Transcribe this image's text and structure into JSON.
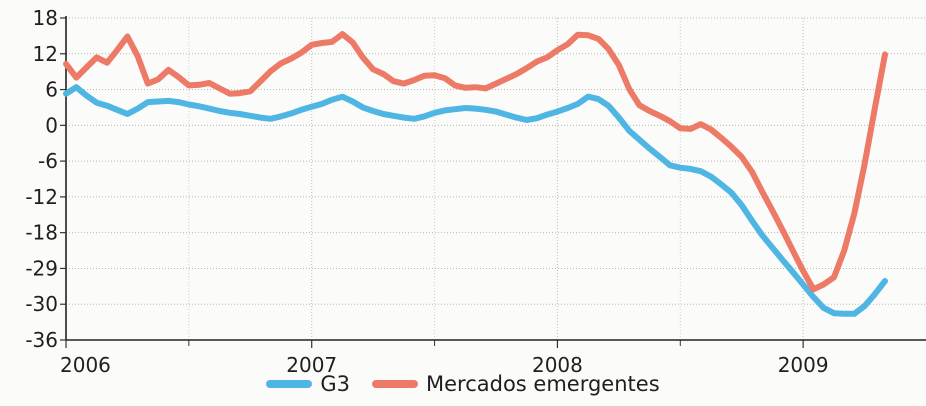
{
  "chart_data": {
    "type": "line",
    "title": "",
    "xlabel": "",
    "ylabel": "",
    "x_ticks": [
      "2006",
      "2007",
      "2008",
      "2009"
    ],
    "y_ticks": [
      "18",
      "12",
      "6",
      "0",
      "-6",
      "-12",
      "-18",
      "-29",
      "-30",
      "-36"
    ],
    "ylim": [
      -36,
      18
    ],
    "xlim": [
      2006.0,
      2009.5
    ],
    "grid": true,
    "legend_placement": "bottom-center",
    "x": [
      2006.0,
      2006.042,
      2006.083,
      2006.125,
      2006.167,
      2006.208,
      2006.25,
      2006.292,
      2006.333,
      2006.375,
      2006.417,
      2006.458,
      2006.5,
      2006.542,
      2006.583,
      2006.625,
      2006.667,
      2006.708,
      2006.75,
      2006.792,
      2006.833,
      2006.875,
      2006.917,
      2006.958,
      2007.0,
      2007.042,
      2007.083,
      2007.125,
      2007.167,
      2007.208,
      2007.25,
      2007.292,
      2007.333,
      2007.375,
      2007.417,
      2007.458,
      2007.5,
      2007.542,
      2007.583,
      2007.625,
      2007.667,
      2007.708,
      2007.75,
      2007.792,
      2007.833,
      2007.875,
      2007.917,
      2007.958,
      2008.0,
      2008.042,
      2008.083,
      2008.125,
      2008.167,
      2008.208,
      2008.25,
      2008.292,
      2008.333,
      2008.375,
      2008.417,
      2008.458,
      2008.5,
      2008.542,
      2008.583,
      2008.625,
      2008.667,
      2008.708,
      2008.75,
      2008.792,
      2008.833,
      2008.875,
      2008.917,
      2008.958,
      2009.0,
      2009.042,
      2009.083,
      2009.125,
      2009.167,
      2009.208,
      2009.25,
      2009.292,
      2009.333
    ],
    "series": [
      {
        "name": "G3",
        "color": "#4fb6e3",
        "values": [
          5.3,
          6.4,
          5.0,
          3.8,
          3.3,
          2.6,
          1.9,
          2.8,
          3.9,
          4.0,
          4.1,
          3.9,
          3.5,
          3.2,
          2.8,
          2.4,
          2.1,
          1.9,
          1.6,
          1.3,
          1.1,
          1.5,
          2.0,
          2.6,
          3.1,
          3.6,
          4.3,
          4.8,
          4.0,
          3.0,
          2.4,
          1.9,
          1.6,
          1.3,
          1.1,
          1.5,
          2.1,
          2.5,
          2.7,
          2.9,
          2.8,
          2.6,
          2.3,
          1.8,
          1.3,
          0.9,
          1.2,
          1.8,
          2.3,
          2.9,
          3.6,
          4.8,
          4.4,
          3.3,
          1.3,
          -0.9,
          -2.4,
          -3.9,
          -5.3,
          -6.7,
          -7.1,
          -7.3,
          -7.7,
          -8.6,
          -9.9,
          -11.3,
          -13.4,
          -16.0,
          -18.4,
          -20.5,
          -22.6,
          -24.6,
          -26.7,
          -28.8,
          -30.6,
          -31.5,
          -31.6,
          -31.6,
          -30.3,
          -28.3,
          -26.1
        ]
      },
      {
        "name": "Mercados emergentes",
        "color": "#ec7a67",
        "values": [
          10.3,
          8.0,
          9.7,
          11.4,
          10.5,
          12.6,
          14.9,
          11.6,
          7.0,
          7.7,
          9.3,
          8.1,
          6.7,
          6.8,
          7.1,
          6.2,
          5.3,
          5.4,
          5.7,
          7.4,
          9.1,
          10.4,
          11.2,
          12.2,
          13.5,
          13.8,
          14.0,
          15.3,
          13.9,
          11.4,
          9.4,
          8.6,
          7.4,
          7.0,
          7.6,
          8.3,
          8.4,
          7.9,
          6.7,
          6.3,
          6.4,
          6.2,
          7.0,
          7.8,
          8.6,
          9.6,
          10.7,
          11.4,
          12.6,
          13.6,
          15.2,
          15.1,
          14.5,
          12.8,
          10.1,
          6.1,
          3.4,
          2.4,
          1.6,
          0.7,
          -0.5,
          -0.6,
          0.2,
          -0.7,
          -2.1,
          -3.6,
          -5.3,
          -7.8,
          -11.1,
          -14.3,
          -17.6,
          -21.0,
          -24.4,
          -27.5,
          -26.7,
          -25.5,
          -21.0,
          -14.8,
          -6.5,
          2.9,
          11.9
        ]
      }
    ]
  }
}
